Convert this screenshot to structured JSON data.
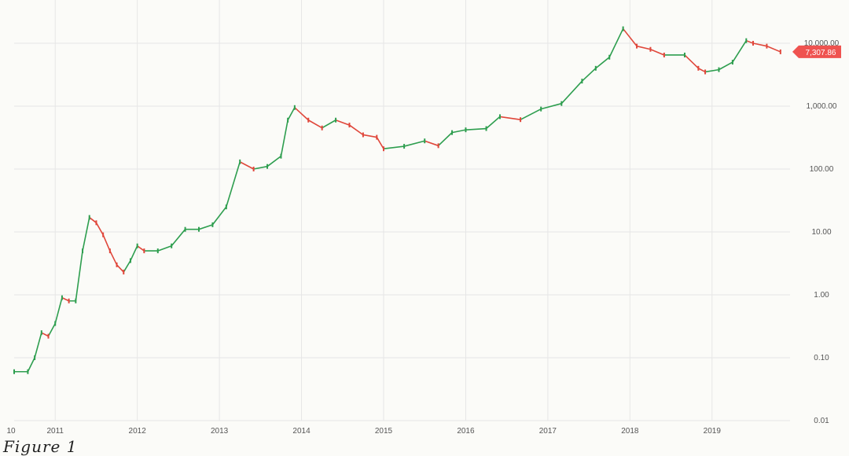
{
  "caption": "Figure 1",
  "chart_data": {
    "type": "candlestick",
    "scale": "log",
    "ylim": [
      0.01,
      20000
    ],
    "grid": true,
    "x_tick_labels": [
      "10",
      "2011",
      "2012",
      "2013",
      "2014",
      "2015",
      "2016",
      "2017",
      "2018",
      "2019"
    ],
    "y_tick_labels": [
      "10,000.00",
      "1,000.00",
      "100.00",
      "10.00",
      "1.00",
      "0.10",
      "0.01"
    ],
    "y_ticks": [
      10000,
      1000,
      100,
      10,
      1,
      0.1,
      0.01
    ],
    "last_price_label": "7,307.86",
    "last_price": 7307.86,
    "colors": {
      "up": "#2e9e4f",
      "down": "#e0473b",
      "badge": "#ef5350",
      "grid": "#e6e6e6"
    },
    "points": [
      {
        "x": "2010-07",
        "y": 0.06
      },
      {
        "x": "2010-09",
        "y": 0.06
      },
      {
        "x": "2010-10",
        "y": 0.1
      },
      {
        "x": "2010-11",
        "y": 0.25
      },
      {
        "x": "2010-12",
        "y": 0.22
      },
      {
        "x": "2011-01",
        "y": 0.35
      },
      {
        "x": "2011-02",
        "y": 0.9
      },
      {
        "x": "2011-03",
        "y": 0.8
      },
      {
        "x": "2011-04",
        "y": 0.8
      },
      {
        "x": "2011-05",
        "y": 5
      },
      {
        "x": "2011-06",
        "y": 17
      },
      {
        "x": "2011-07",
        "y": 14
      },
      {
        "x": "2011-08",
        "y": 9
      },
      {
        "x": "2011-09",
        "y": 5
      },
      {
        "x": "2011-10",
        "y": 3
      },
      {
        "x": "2011-11",
        "y": 2.3
      },
      {
        "x": "2011-12",
        "y": 3.5
      },
      {
        "x": "2012-01",
        "y": 6
      },
      {
        "x": "2012-02",
        "y": 5
      },
      {
        "x": "2012-04",
        "y": 5
      },
      {
        "x": "2012-06",
        "y": 6
      },
      {
        "x": "2012-08",
        "y": 11
      },
      {
        "x": "2012-10",
        "y": 11
      },
      {
        "x": "2012-12",
        "y": 13
      },
      {
        "x": "2013-02",
        "y": 25
      },
      {
        "x": "2013-04",
        "y": 130
      },
      {
        "x": "2013-06",
        "y": 100
      },
      {
        "x": "2013-08",
        "y": 110
      },
      {
        "x": "2013-10",
        "y": 160
      },
      {
        "x": "2013-11",
        "y": 600
      },
      {
        "x": "2013-12",
        "y": 950
      },
      {
        "x": "2014-02",
        "y": 600
      },
      {
        "x": "2014-04",
        "y": 450
      },
      {
        "x": "2014-06",
        "y": 600
      },
      {
        "x": "2014-08",
        "y": 500
      },
      {
        "x": "2014-10",
        "y": 350
      },
      {
        "x": "2014-12",
        "y": 320
      },
      {
        "x": "2015-01",
        "y": 210
      },
      {
        "x": "2015-04",
        "y": 230
      },
      {
        "x": "2015-07",
        "y": 280
      },
      {
        "x": "2015-09",
        "y": 235
      },
      {
        "x": "2015-11",
        "y": 380
      },
      {
        "x": "2016-01",
        "y": 420
      },
      {
        "x": "2016-04",
        "y": 440
      },
      {
        "x": "2016-06",
        "y": 680
      },
      {
        "x": "2016-09",
        "y": 610
      },
      {
        "x": "2016-12",
        "y": 900
      },
      {
        "x": "2017-03",
        "y": 1100
      },
      {
        "x": "2017-06",
        "y": 2500
      },
      {
        "x": "2017-08",
        "y": 4000
      },
      {
        "x": "2017-10",
        "y": 6000
      },
      {
        "x": "2017-12",
        "y": 17000
      },
      {
        "x": "2018-02",
        "y": 9000
      },
      {
        "x": "2018-04",
        "y": 8000
      },
      {
        "x": "2018-06",
        "y": 6500
      },
      {
        "x": "2018-09",
        "y": 6500
      },
      {
        "x": "2018-11",
        "y": 4000
      },
      {
        "x": "2018-12",
        "y": 3500
      },
      {
        "x": "2019-02",
        "y": 3800
      },
      {
        "x": "2019-04",
        "y": 5000
      },
      {
        "x": "2019-06",
        "y": 11000
      },
      {
        "x": "2019-07",
        "y": 10000
      },
      {
        "x": "2019-09",
        "y": 9000
      },
      {
        "x": "2019-11",
        "y": 7300
      }
    ]
  }
}
